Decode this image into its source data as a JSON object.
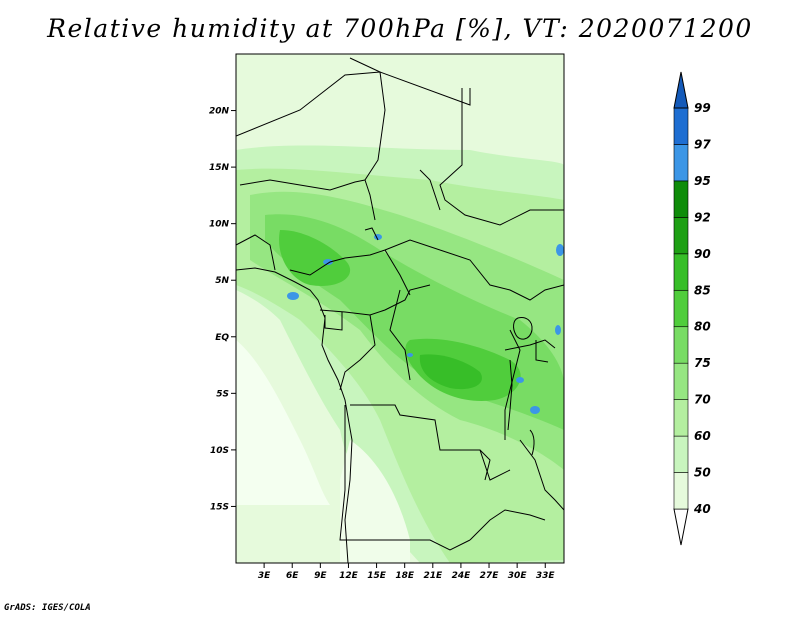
{
  "title": "Relative humidity at 700hPa [%], VT: 2020071200",
  "credit": "GrADS: IGES/COLA",
  "chart_data": {
    "type": "heatmap",
    "title": "Relative humidity at 700hPa [%], VT: 2020071200",
    "variable": "Relative humidity",
    "level": "700hPa",
    "units": "%",
    "valid_time": "2020071200",
    "lon_range": [
      0,
      35
    ],
    "lat_range": [
      -20,
      25
    ],
    "x_ticks": [
      "3E",
      "6E",
      "9E",
      "12E",
      "15E",
      "18E",
      "21E",
      "24E",
      "27E",
      "30E",
      "33E"
    ],
    "x_tick_values": [
      3,
      6,
      9,
      12,
      15,
      18,
      21,
      24,
      27,
      30,
      33
    ],
    "y_ticks": [
      "20N",
      "15N",
      "10N",
      "5N",
      "EQ",
      "5S",
      "10S",
      "15S"
    ],
    "y_tick_values": [
      20,
      15,
      10,
      5,
      0,
      -5,
      -10,
      -15
    ],
    "colorbar_levels": [
      "40",
      "50",
      "60",
      "70",
      "75",
      "80",
      "85",
      "90",
      "92",
      "95",
      "97",
      "99"
    ],
    "colorbar_colors": [
      "#ffffff",
      "#e6fadc",
      "#c8f5be",
      "#b4efa0",
      "#96e682",
      "#78dc64",
      "#50cd3c",
      "#37be28",
      "#1ea014",
      "#0f8c0a",
      "#3c96e6",
      "#1e6ed2",
      "#145ab9"
    ]
  }
}
